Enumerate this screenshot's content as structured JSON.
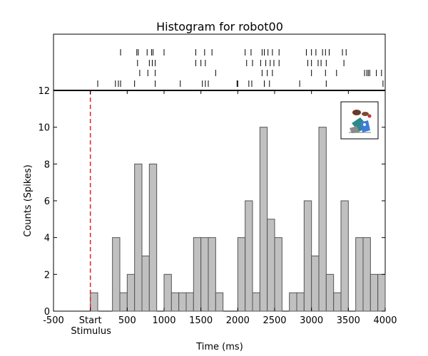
{
  "chart_data": {
    "type": "bar",
    "title": "Histogram for robot00",
    "xlabel": "Time (ms)",
    "ylabel": "Counts (Spikes)",
    "xlim": [
      -500,
      4000
    ],
    "ylim": [
      0,
      12
    ],
    "x_ticks": [
      {
        "value": -500,
        "label": "-500"
      },
      {
        "value": 0,
        "label": "Start"
      },
      {
        "value": 500,
        "label": "500"
      },
      {
        "value": 1000,
        "label": "1000"
      },
      {
        "value": 1500,
        "label": "1500"
      },
      {
        "value": 2000,
        "label": "2000"
      },
      {
        "value": 2500,
        "label": "2500"
      },
      {
        "value": 3000,
        "label": "3000"
      },
      {
        "value": 3500,
        "label": "3500"
      },
      {
        "value": 4000,
        "label": "4000"
      }
    ],
    "y_ticks": [
      0,
      2,
      4,
      6,
      8,
      10,
      12
    ],
    "stimulus": {
      "x": 0,
      "label": "Stimulus",
      "color": "#e8202a"
    },
    "bin_width": 100,
    "bins_start": [
      0,
      100,
      200,
      300,
      400,
      500,
      600,
      700,
      800,
      900,
      1000,
      1100,
      1200,
      1300,
      1400,
      1500,
      1600,
      1700,
      1800,
      1900,
      2000,
      2100,
      2200,
      2300,
      2400,
      2500,
      2600,
      2700,
      2800,
      2900,
      3000,
      3100,
      3200,
      3300,
      3400,
      3500,
      3600,
      3700,
      3800,
      3900
    ],
    "values": [
      1,
      0,
      0,
      4,
      1,
      2,
      8,
      3,
      8,
      0,
      2,
      1,
      1,
      1,
      4,
      4,
      4,
      1,
      0,
      0,
      4,
      6,
      1,
      10,
      5,
      4,
      0,
      1,
      1,
      6,
      3,
      10,
      2,
      1,
      6,
      0,
      4,
      4,
      2,
      2
    ],
    "bar_fill": "#c0c0c0",
    "bar_stroke": "#555555",
    "raster": {
      "trials": [
        [
          410,
          630,
          650,
          770,
          830,
          850,
          1000,
          1430,
          1550,
          1650,
          2100,
          2180,
          2330,
          2360,
          2410,
          2470,
          2560,
          2930,
          3000,
          3060,
          3150,
          3190,
          3240,
          3420,
          3470
        ],
        [
          640,
          800,
          840,
          880,
          1430,
          1500,
          1560,
          2120,
          2200,
          2310,
          2380,
          2440,
          2490,
          2560,
          2950,
          3000,
          3090,
          3130,
          3200,
          3440
        ],
        [
          670,
          780,
          880,
          1700,
          2330,
          2400,
          2470,
          3000,
          3190,
          3340,
          3720,
          3750,
          3770,
          3790,
          3880,
          3950
        ],
        [
          100,
          340,
          380,
          410,
          600,
          880,
          1220,
          1520,
          1560,
          1600,
          1990,
          2000,
          2150,
          2190,
          2360,
          2430,
          2840,
          3200,
          3970
        ]
      ]
    },
    "legend_inset": {
      "position": "top-right"
    }
  }
}
